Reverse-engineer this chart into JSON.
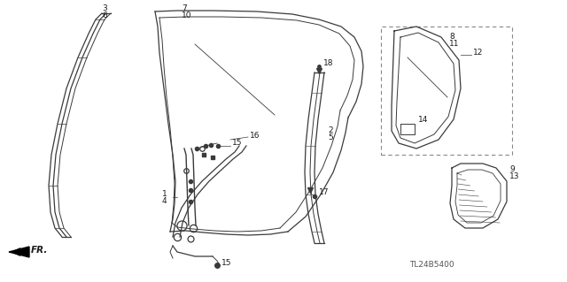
{
  "bg_color": "#ffffff",
  "line_color": "#3a3a3a",
  "title_code": "TL24B5400"
}
